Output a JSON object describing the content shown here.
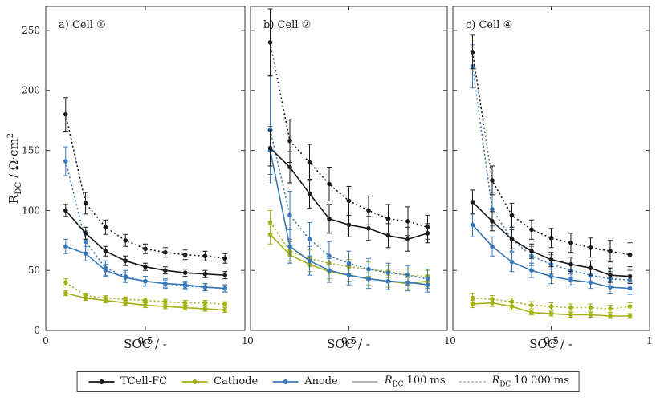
{
  "figure": {
    "xlabel": "SOC / -",
    "ylabel": {
      "prefix": "R",
      "sub": "DC",
      "mid": " / Ω·cm",
      "sup": "2"
    },
    "background": "#ffffff"
  },
  "colors": {
    "tcell": "#1a1a1a",
    "cathode": "#a3b117",
    "anode": "#3878b8",
    "gray": "#aaaaaa"
  },
  "legend": {
    "tcell_label": "TCell-FC",
    "cathode_label": "Cathode",
    "anode_label": "Anode",
    "r100": {
      "prefix": "R",
      "sub": "DC",
      "suffix": " 100 ms"
    },
    "r10000": {
      "prefix": "R",
      "sub": "DC",
      "suffix": " 10 000 ms"
    }
  },
  "chart_data": [
    {
      "type": "line",
      "id": "a",
      "title": "a) Cell ①",
      "xlabel": "SOC / -",
      "ylabel": "R_DC / Ω·cm²",
      "xlim": [
        0,
        1
      ],
      "ylim": [
        0,
        270
      ],
      "xticks": [
        0,
        0.5,
        1
      ],
      "yticks": [
        0,
        50,
        100,
        150,
        200,
        250
      ],
      "grid": false,
      "x": [
        0.1,
        0.2,
        0.3,
        0.4,
        0.5,
        0.6,
        0.7,
        0.8,
        0.9
      ],
      "series": [
        {
          "key": "cathode-10000ms",
          "name": "Cathode R_DC 10 000 ms",
          "color_key": "cathode",
          "style": "dotted",
          "values": [
            40,
            29,
            27,
            26,
            25,
            24,
            23,
            23,
            22
          ],
          "errors": [
            3,
            2,
            2,
            2,
            2,
            2,
            2,
            2,
            2
          ]
        },
        {
          "key": "cathode-100ms",
          "name": "Cathode R_DC 100 ms",
          "color_key": "cathode",
          "style": "solid",
          "values": [
            31,
            27,
            25,
            23,
            21,
            20,
            19,
            18,
            17
          ],
          "errors": [
            2,
            2,
            2,
            2,
            2,
            2,
            2,
            2,
            2
          ]
        },
        {
          "key": "anode-10000ms",
          "name": "Anode R_DC 10 000 ms",
          "color_key": "anode",
          "style": "dotted",
          "values": [
            141,
            74,
            52,
            45,
            41,
            39,
            37,
            36,
            35
          ],
          "errors": [
            12,
            9,
            6,
            5,
            4,
            4,
            3,
            3,
            3
          ]
        },
        {
          "key": "anode-100ms",
          "name": "Anode R_DC 100 ms",
          "color_key": "anode",
          "style": "solid",
          "values": [
            70,
            64,
            50,
            44,
            41,
            39,
            38,
            36,
            35
          ],
          "errors": [
            6,
            6,
            5,
            4,
            4,
            3,
            3,
            3,
            3
          ]
        },
        {
          "key": "tcell-10000ms",
          "name": "TCell-FC R_DC 10 000 ms",
          "color_key": "tcell",
          "style": "dotted",
          "values": [
            180,
            106,
            86,
            75,
            68,
            65,
            63,
            62,
            60
          ],
          "errors": [
            14,
            9,
            6,
            5,
            4,
            4,
            4,
            4,
            4
          ]
        },
        {
          "key": "tcell-100ms",
          "name": "TCell-FC R_DC 100 ms",
          "color_key": "tcell",
          "style": "solid",
          "values": [
            100,
            81,
            66,
            58,
            53,
            50,
            48,
            47,
            46
          ],
          "errors": [
            5,
            5,
            4,
            4,
            3,
            3,
            3,
            3,
            3
          ]
        }
      ]
    },
    {
      "type": "line",
      "id": "b",
      "title": "b) Cell ②",
      "xlabel": "SOC / -",
      "ylabel": "R_DC / Ω·cm²",
      "xlim": [
        0,
        1
      ],
      "ylim": [
        0,
        270
      ],
      "xticks": [
        0,
        0.5,
        1
      ],
      "yticks": [
        0,
        50,
        100,
        150,
        200,
        250
      ],
      "grid": false,
      "x": [
        0.1,
        0.2,
        0.3,
        0.4,
        0.5,
        0.6,
        0.7,
        0.8,
        0.9
      ],
      "series": [
        {
          "key": "cathode-10000ms",
          "name": "Cathode R_DC 10 000 ms",
          "color_key": "cathode",
          "style": "dotted",
          "values": [
            90,
            66,
            60,
            56,
            53,
            51,
            49,
            46,
            45
          ],
          "errors": [
            10,
            8,
            7,
            6,
            6,
            6,
            5,
            5,
            5
          ]
        },
        {
          "key": "cathode-100ms",
          "name": "Cathode R_DC 100 ms",
          "color_key": "cathode",
          "style": "solid",
          "values": [
            80,
            63,
            55,
            49,
            46,
            43,
            41,
            39,
            41
          ],
          "errors": [
            8,
            7,
            6,
            6,
            5,
            5,
            5,
            5,
            5
          ]
        },
        {
          "key": "anode-10000ms",
          "name": "Anode R_DC 10 000 ms",
          "color_key": "anode",
          "style": "dotted",
          "values": [
            167,
            96,
            76,
            62,
            56,
            51,
            48,
            46,
            43
          ],
          "errors": [
            45,
            20,
            14,
            12,
            10,
            9,
            8,
            8,
            8
          ]
        },
        {
          "key": "anode-100ms",
          "name": "Anode R_DC 100 ms",
          "color_key": "anode",
          "style": "solid",
          "values": [
            150,
            70,
            58,
            50,
            46,
            43,
            41,
            40,
            38
          ],
          "errors": [
            20,
            14,
            12,
            10,
            8,
            8,
            7,
            7,
            6
          ]
        },
        {
          "key": "tcell-10000ms",
          "name": "TCell-FC R_DC 10 000 ms",
          "color_key": "tcell",
          "style": "dotted",
          "values": [
            240,
            158,
            140,
            122,
            108,
            100,
            93,
            91,
            86
          ],
          "errors": [
            28,
            18,
            15,
            14,
            12,
            12,
            12,
            12,
            10
          ]
        },
        {
          "key": "tcell-100ms",
          "name": "TCell-FC R_DC 100 ms",
          "color_key": "tcell",
          "style": "solid",
          "values": [
            152,
            136,
            114,
            93,
            88,
            85,
            79,
            76,
            81
          ],
          "errors": [
            15,
            13,
            12,
            12,
            10,
            10,
            10,
            10,
            8
          ]
        }
      ]
    },
    {
      "type": "line",
      "id": "c",
      "title": "c) Cell ④",
      "xlabel": "SOC / -",
      "ylabel": "R_DC / Ω·cm²",
      "xlim": [
        0,
        1
      ],
      "ylim": [
        0,
        270
      ],
      "xticks": [
        0,
        0.5,
        1
      ],
      "yticks": [
        0,
        50,
        100,
        150,
        200,
        250
      ],
      "grid": false,
      "x": [
        0.1,
        0.2,
        0.3,
        0.4,
        0.5,
        0.6,
        0.7,
        0.8,
        0.9
      ],
      "series": [
        {
          "key": "cathode-10000ms",
          "name": "Cathode R_DC 10 000 ms",
          "color_key": "cathode",
          "style": "dotted",
          "values": [
            27,
            26,
            24,
            21,
            20,
            19,
            19,
            18,
            20
          ],
          "errors": [
            4,
            3,
            3,
            3,
            3,
            3,
            3,
            3,
            3
          ]
        },
        {
          "key": "cathode-100ms",
          "name": "Cathode R_DC 100 ms",
          "color_key": "cathode",
          "style": "solid",
          "values": [
            22,
            23,
            20,
            15,
            14,
            13,
            13,
            12,
            12
          ],
          "errors": [
            3,
            3,
            3,
            2,
            2,
            2,
            2,
            2,
            2
          ]
        },
        {
          "key": "anode-10000ms",
          "name": "Anode R_DC 10 000 ms",
          "color_key": "anode",
          "style": "dotted",
          "values": [
            220,
            101,
            76,
            62,
            55,
            50,
            46,
            43,
            42
          ],
          "errors": [
            18,
            14,
            10,
            8,
            8,
            6,
            6,
            6,
            8
          ]
        },
        {
          "key": "anode-100ms",
          "name": "Anode R_DC 100 ms",
          "color_key": "anode",
          "style": "solid",
          "values": [
            88,
            70,
            57,
            50,
            45,
            42,
            40,
            36,
            35
          ],
          "errors": [
            10,
            8,
            8,
            6,
            6,
            5,
            5,
            5,
            5
          ]
        },
        {
          "key": "tcell-10000ms",
          "name": "TCell-FC R_DC 10 000 ms",
          "color_key": "tcell",
          "style": "dotted",
          "values": [
            232,
            125,
            96,
            84,
            77,
            73,
            69,
            66,
            63
          ],
          "errors": [
            14,
            12,
            10,
            8,
            8,
            8,
            8,
            9,
            10
          ]
        },
        {
          "key": "tcell-100ms",
          "name": "TCell-FC R_DC 100 ms",
          "color_key": "tcell",
          "style": "solid",
          "values": [
            107,
            91,
            76,
            66,
            59,
            55,
            52,
            46,
            45
          ],
          "errors": [
            10,
            8,
            8,
            6,
            6,
            6,
            6,
            6,
            6
          ]
        }
      ]
    }
  ]
}
